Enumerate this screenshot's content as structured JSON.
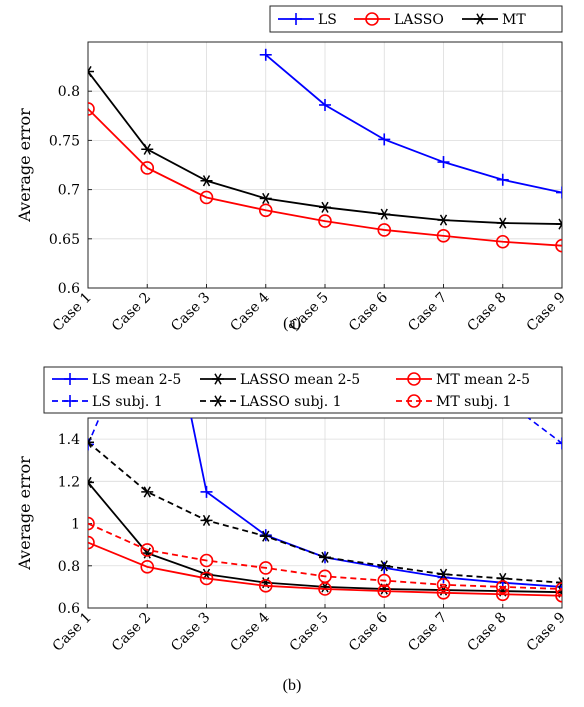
{
  "chart_data": [
    {
      "type": "line",
      "caption": "(a)",
      "ylabel": "Average error",
      "ylim": [
        0.6,
        0.85
      ],
      "yticks": [
        "0.6",
        "0.65",
        "0.7",
        "0.75",
        "0.8"
      ],
      "categories": [
        "Case 1",
        "Case 2",
        "Case 3",
        "Case 4",
        "Case 5",
        "Case 6",
        "Case 7",
        "Case 8",
        "Case 9"
      ],
      "grid": true,
      "legend": "top-right",
      "series": [
        {
          "name": "LS",
          "color": "#0000ff",
          "marker": "plus",
          "dash": false,
          "values": [
            null,
            null,
            null,
            0.837,
            0.786,
            0.751,
            0.728,
            0.71,
            0.697
          ]
        },
        {
          "name": "LASSO",
          "color": "#ff0000",
          "marker": "circle",
          "dash": false,
          "values": [
            0.782,
            0.722,
            0.692,
            0.679,
            0.668,
            0.659,
            0.653,
            0.647,
            0.643
          ]
        },
        {
          "name": "MT",
          "color": "#000000",
          "marker": "asterisk",
          "dash": false,
          "values": [
            0.82,
            0.741,
            0.709,
            0.691,
            0.682,
            0.675,
            0.669,
            0.666,
            0.665
          ]
        }
      ]
    },
    {
      "type": "line",
      "caption": "(b)",
      "ylabel": "Average error",
      "ylim": [
        0.6,
        1.5
      ],
      "yticks": [
        "0.6",
        "0.8",
        "1",
        "1.2",
        "1.4"
      ],
      "categories": [
        "Case 1",
        "Case 2",
        "Case 3",
        "Case 4",
        "Case 5",
        "Case 6",
        "Case 7",
        "Case 8",
        "Case 9"
      ],
      "grid": true,
      "legend": "top",
      "series": [
        {
          "name": "LS mean 2-5",
          "color": "#0000ff",
          "marker": "plus",
          "dash": false,
          "values": [
            null,
            null,
            1.15,
            0.945,
            0.84,
            0.79,
            0.745,
            0.72,
            0.7
          ]
        },
        {
          "name": "LASSO mean 2-5",
          "color": "#000000",
          "marker": "asterisk",
          "dash": false,
          "values": [
            1.195,
            0.86,
            0.76,
            0.72,
            0.7,
            0.69,
            0.685,
            0.68,
            0.675
          ]
        },
        {
          "name": "MT mean 2-5",
          "color": "#ff0000",
          "marker": "circle",
          "dash": false,
          "values": [
            0.91,
            0.795,
            0.74,
            0.705,
            0.69,
            0.68,
            0.672,
            0.665,
            0.658
          ]
        },
        {
          "name": "LS subj. 1",
          "color": "#0000ff",
          "marker": "plus",
          "dash": true,
          "values": [
            1.375,
            null,
            null,
            null,
            null,
            null,
            null,
            null,
            1.38
          ]
        },
        {
          "name": "LASSO subj. 1",
          "color": "#000000",
          "marker": "asterisk",
          "dash": true,
          "values": [
            1.385,
            1.15,
            1.015,
            0.94,
            0.84,
            0.8,
            0.76,
            0.74,
            0.72
          ]
        },
        {
          "name": "MT subj. 1",
          "color": "#ff0000",
          "marker": "circle",
          "dash": true,
          "values": [
            1.0,
            0.875,
            0.825,
            0.79,
            0.75,
            0.73,
            0.71,
            0.7,
            0.69
          ]
        }
      ]
    }
  ]
}
